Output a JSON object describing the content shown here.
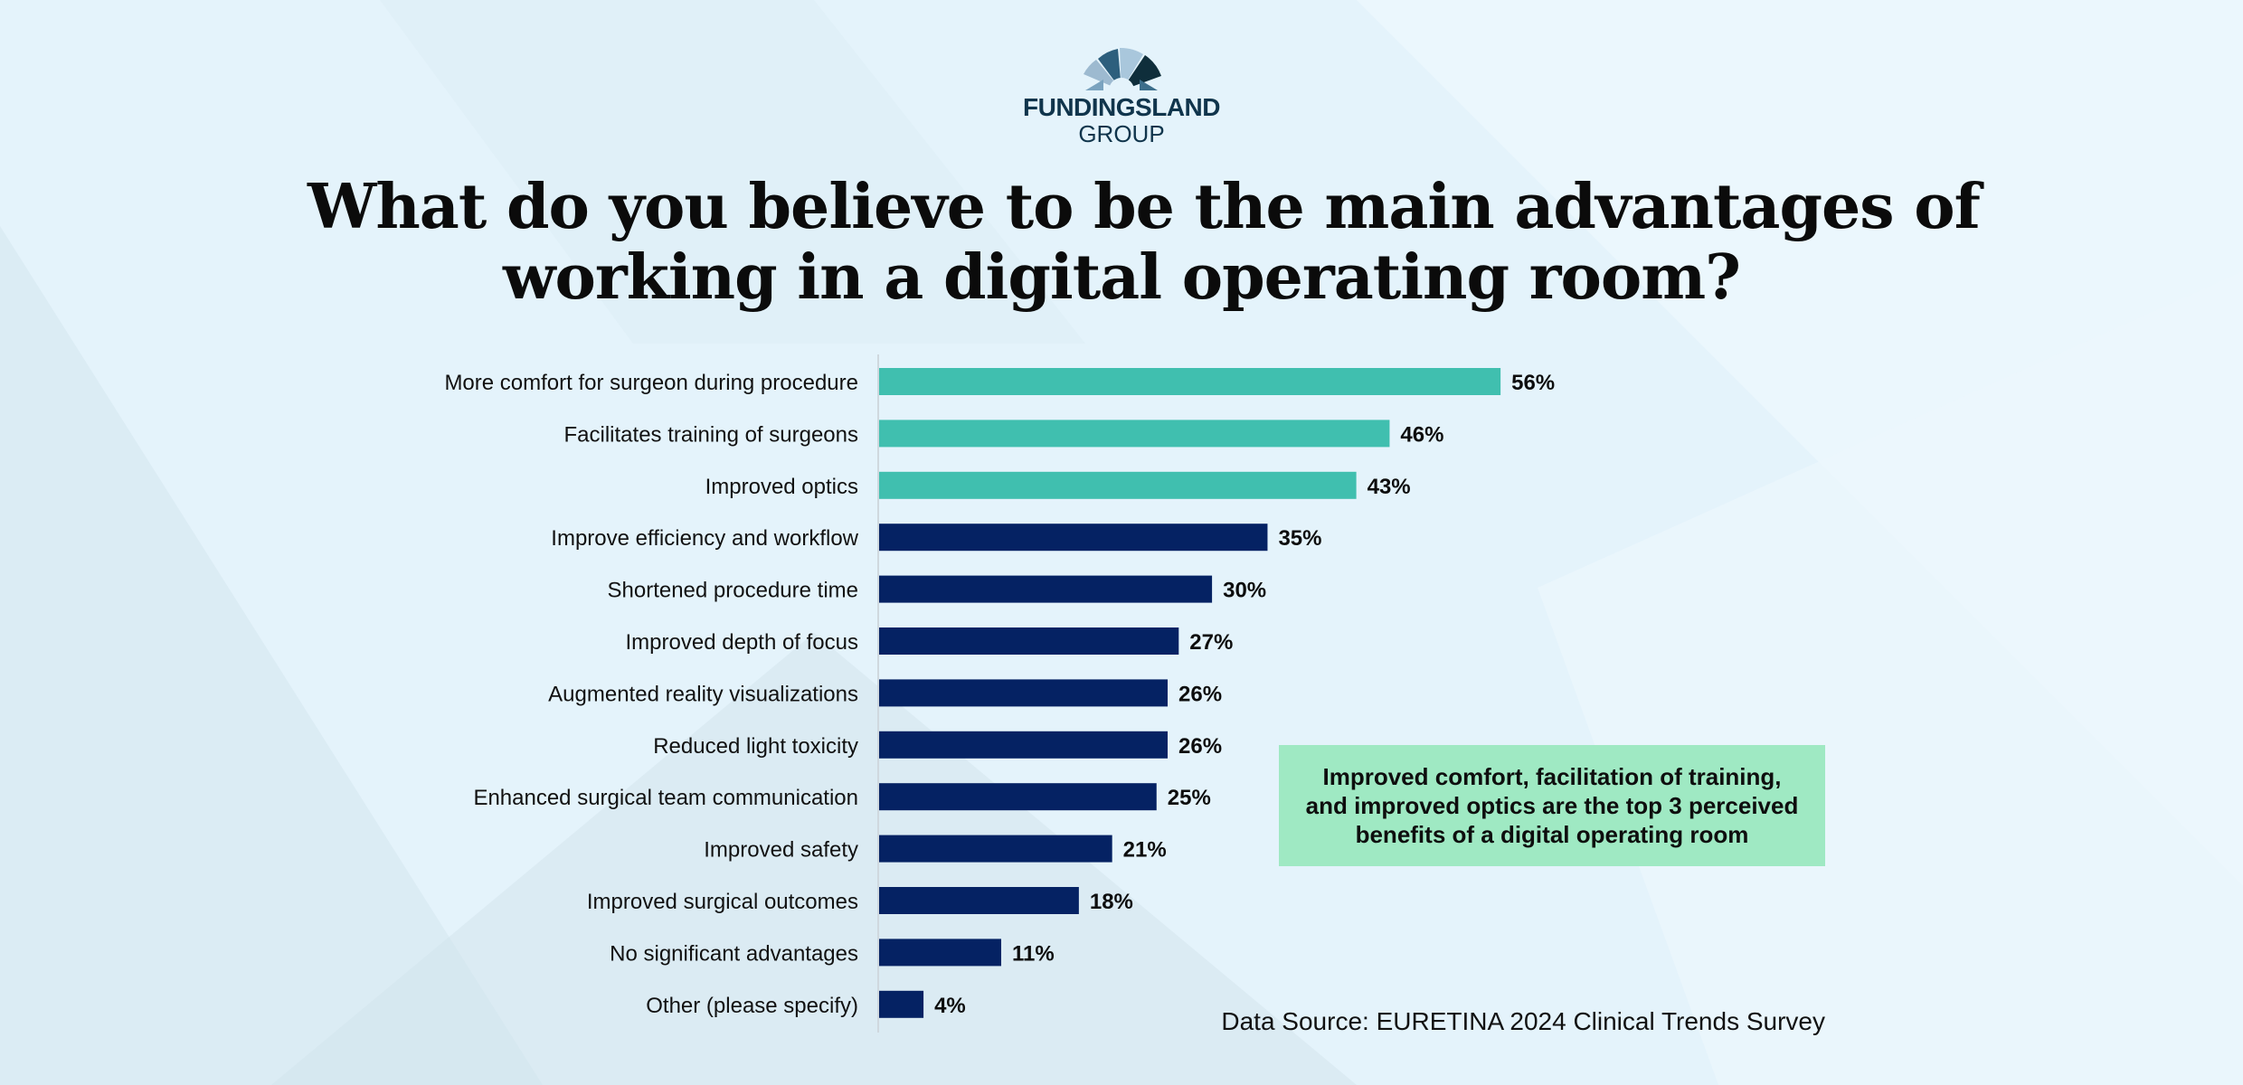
{
  "logo": {
    "name": "FUNDINGSLAND",
    "sub": "GROUP"
  },
  "title_lines": [
    "What do you believe to be the main advantages of",
    "working in a digital operating room?"
  ],
  "colors": {
    "highlight": "#40bfaf",
    "default": "#052263",
    "note_bg": "#9fe9c3",
    "background": "#e4f3fb"
  },
  "chart_data": {
    "type": "bar",
    "orientation": "horizontal",
    "title": "What do you believe to be the main advantages of working in a digital operating room?",
    "categories": [
      "More comfort for surgeon during procedure",
      "Facilitates training of surgeons",
      "Improved optics",
      "Improve efficiency and workflow",
      "Shortened procedure time",
      "Improved depth of focus",
      "Augmented reality visualizations",
      "Reduced light toxicity",
      "Enhanced surgical team communication",
      "Improved safety",
      "Improved surgical outcomes",
      "No significant advantages",
      "Other (please specify)"
    ],
    "values": [
      56,
      46,
      43,
      35,
      30,
      27,
      26,
      26,
      25,
      21,
      18,
      11,
      4
    ],
    "value_labels": [
      "56%",
      "46%",
      "43%",
      "35%",
      "30%",
      "27%",
      "26%",
      "26%",
      "25%",
      "21%",
      "18%",
      "11%",
      "4%"
    ],
    "highlighted_top": 3,
    "xlim": [
      0,
      100
    ],
    "grid": false,
    "legend": "none"
  },
  "note": {
    "lines": [
      "Improved comfort, facilitation of training,",
      "and improved optics are the top 3 perceived",
      "benefits of a digital operating room"
    ]
  },
  "source": "Data Source: EURETINA 2024 Clinical Trends Survey"
}
